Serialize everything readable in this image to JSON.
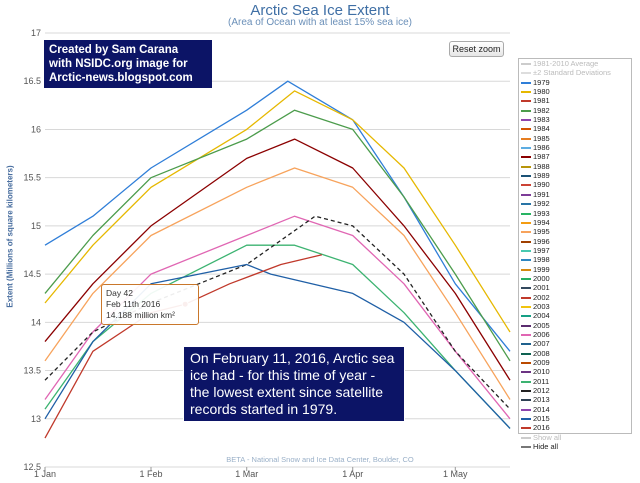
{
  "title": "Arctic Sea Ice Extent",
  "subtitle": "(Area of Ocean with at least 15% sea ice)",
  "reset_zoom": "Reset zoom",
  "credit_box": [
    "Created by Sam Carana",
    "with NSIDC.org image for",
    "Arctic-news.blogspot.com"
  ],
  "note": "On February 11, 2016, Arctic sea ice had - for this time of year - the lowest extent since satellite records started in 1979.",
  "tooltip": {
    "day": "Day 42",
    "date": "Feb 11th 2016",
    "value": "14.188 million km²"
  },
  "footer": "BETA - National Snow and Ice Data Center, Boulder, CO",
  "chart_data": {
    "type": "line",
    "title": "Arctic Sea Ice Extent",
    "subtitle": "(Area of Ocean with at least 15% sea ice)",
    "ylabel": "Extent (Millions of square kilometers)",
    "ylim": [
      12.5,
      17
    ],
    "yticks": [
      "17",
      "16.5",
      "16",
      "15.5",
      "15",
      "14.5",
      "14",
      "13.5",
      "13",
      "12.5"
    ],
    "xticks": [
      "1 Jan",
      "1 Feb",
      "1 Mar",
      "1 Apr",
      "1 May"
    ],
    "xlim_days": [
      1,
      137
    ],
    "series": [
      {
        "name": "1979",
        "color": "#2f7ed8",
        "values": [
          [
            1,
            14.8
          ],
          [
            15,
            15.1
          ],
          [
            32,
            15.6
          ],
          [
            60,
            16.2
          ],
          [
            72,
            16.5
          ],
          [
            91,
            16.1
          ],
          [
            106,
            15.3
          ],
          [
            121,
            14.4
          ],
          [
            137,
            13.7
          ]
        ]
      },
      {
        "name": "1980",
        "color": "#e6b800",
        "values": [
          [
            1,
            14.2
          ],
          [
            15,
            14.8
          ],
          [
            32,
            15.4
          ],
          [
            60,
            16.0
          ],
          [
            74,
            16.4
          ],
          [
            91,
            16.1
          ],
          [
            106,
            15.6
          ],
          [
            121,
            14.8
          ],
          [
            137,
            13.9
          ]
        ]
      },
      {
        "name": "1982",
        "color": "#4c9c4c",
        "values": [
          [
            1,
            14.3
          ],
          [
            15,
            14.9
          ],
          [
            32,
            15.5
          ],
          [
            60,
            15.9
          ],
          [
            74,
            16.2
          ],
          [
            91,
            16.0
          ],
          [
            106,
            15.3
          ],
          [
            121,
            14.5
          ],
          [
            137,
            13.6
          ]
        ]
      },
      {
        "name": "1987",
        "color": "#8b0000",
        "values": [
          [
            1,
            13.8
          ],
          [
            15,
            14.4
          ],
          [
            32,
            15.0
          ],
          [
            60,
            15.7
          ],
          [
            74,
            15.9
          ],
          [
            91,
            15.6
          ],
          [
            106,
            15.0
          ],
          [
            121,
            14.3
          ],
          [
            137,
            13.4
          ]
        ]
      },
      {
        "name": "1995",
        "color": "#f7a35c",
        "values": [
          [
            1,
            13.6
          ],
          [
            15,
            14.3
          ],
          [
            32,
            14.9
          ],
          [
            60,
            15.4
          ],
          [
            74,
            15.6
          ],
          [
            91,
            15.4
          ],
          [
            106,
            14.9
          ],
          [
            121,
            14.1
          ],
          [
            137,
            13.2
          ]
        ]
      },
      {
        "name": "2006",
        "color": "#e066b3",
        "values": [
          [
            1,
            13.2
          ],
          [
            15,
            13.9
          ],
          [
            32,
            14.5
          ],
          [
            60,
            14.9
          ],
          [
            74,
            15.1
          ],
          [
            91,
            14.9
          ],
          [
            106,
            14.4
          ],
          [
            121,
            13.7
          ],
          [
            137,
            13.0
          ]
        ]
      },
      {
        "name": "2011",
        "color": "#3cb371",
        "values": [
          [
            1,
            13.1
          ],
          [
            15,
            13.8
          ],
          [
            32,
            14.3
          ],
          [
            60,
            14.8
          ],
          [
            74,
            14.8
          ],
          [
            91,
            14.6
          ],
          [
            106,
            14.1
          ],
          [
            121,
            13.5
          ],
          [
            137,
            12.9
          ]
        ]
      },
      {
        "name": "2012",
        "color": "#222222",
        "dashed": true,
        "values": [
          [
            1,
            13.4
          ],
          [
            15,
            13.9
          ],
          [
            32,
            14.2
          ],
          [
            60,
            14.6
          ],
          [
            80,
            15.1
          ],
          [
            91,
            15.0
          ],
          [
            106,
            14.5
          ],
          [
            121,
            13.7
          ],
          [
            137,
            13.1
          ]
        ]
      },
      {
        "name": "2015",
        "color": "#1f5fa6",
        "values": [
          [
            1,
            13.0
          ],
          [
            15,
            13.8
          ],
          [
            32,
            14.4
          ],
          [
            60,
            14.6
          ],
          [
            67,
            14.5
          ],
          [
            91,
            14.3
          ],
          [
            106,
            14.0
          ],
          [
            121,
            13.5
          ],
          [
            137,
            12.9
          ]
        ]
      },
      {
        "name": "2016",
        "color": "#c0392b",
        "values": [
          [
            1,
            12.8
          ],
          [
            15,
            13.7
          ],
          [
            32,
            14.1
          ],
          [
            42,
            14.188
          ],
          [
            55,
            14.4
          ],
          [
            70,
            14.6
          ],
          [
            82,
            14.7
          ]
        ]
      }
    ],
    "highlight": {
      "day": 42,
      "value": 14.188
    }
  },
  "legend": {
    "items": [
      {
        "label": "1981-2010 Average",
        "color": "#cccccc",
        "dim": true
      },
      {
        "label": "±2 Standard Deviations",
        "color": "#dddddd",
        "dim": true
      },
      {
        "label": "1979",
        "color": "#2f7ed8"
      },
      {
        "label": "1980",
        "color": "#e6b800"
      },
      {
        "label": "1981",
        "color": "#c0392b"
      },
      {
        "label": "1982",
        "color": "#4c9c4c"
      },
      {
        "label": "1983",
        "color": "#8e44ad"
      },
      {
        "label": "1984",
        "color": "#d35400"
      },
      {
        "label": "1985",
        "color": "#e67e22"
      },
      {
        "label": "1986",
        "color": "#5dade2"
      },
      {
        "label": "1987",
        "color": "#8b0000"
      },
      {
        "label": "1988",
        "color": "#b7950b"
      },
      {
        "label": "1989",
        "color": "#1a5276"
      },
      {
        "label": "1990",
        "color": "#cb4335"
      },
      {
        "label": "1991",
        "color": "#7d3c98"
      },
      {
        "label": "1992",
        "color": "#2874a6"
      },
      {
        "label": "1993",
        "color": "#28b463"
      },
      {
        "label": "1994",
        "color": "#f39c12"
      },
      {
        "label": "1995",
        "color": "#f7a35c"
      },
      {
        "label": "1996",
        "color": "#a04000"
      },
      {
        "label": "1997",
        "color": "#48c9b0"
      },
      {
        "label": "1998",
        "color": "#2e86c1"
      },
      {
        "label": "1999",
        "color": "#d68910"
      },
      {
        "label": "2000",
        "color": "#27ae60"
      },
      {
        "label": "2001",
        "color": "#34495e"
      },
      {
        "label": "2002",
        "color": "#c0392b"
      },
      {
        "label": "2003",
        "color": "#f1c40f"
      },
      {
        "label": "2004",
        "color": "#16a085"
      },
      {
        "label": "2005",
        "color": "#5b2c6f"
      },
      {
        "label": "2006",
        "color": "#e066b3"
      },
      {
        "label": "2007",
        "color": "#1f618d"
      },
      {
        "label": "2008",
        "color": "#0e6251"
      },
      {
        "label": "2009",
        "color": "#ba4a00"
      },
      {
        "label": "2010",
        "color": "#6c3483"
      },
      {
        "label": "2011",
        "color": "#3cb371"
      },
      {
        "label": "2012",
        "color": "#222222"
      },
      {
        "label": "2013",
        "color": "#2e4053"
      },
      {
        "label": "2014",
        "color": "#8e44ad"
      },
      {
        "label": "2015",
        "color": "#1f5fa6"
      },
      {
        "label": "2016",
        "color": "#c0392b"
      },
      {
        "label": "Show all",
        "color": "#cccccc",
        "dim": true
      },
      {
        "label": "Hide all",
        "color": "#777777"
      }
    ]
  }
}
